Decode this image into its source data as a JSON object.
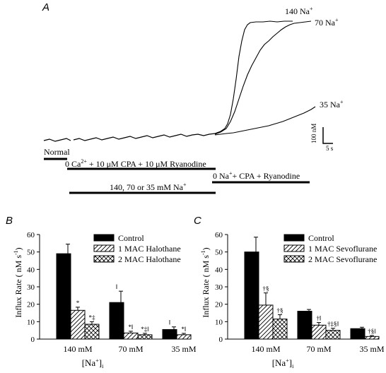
{
  "chart_data": [
    {
      "panel": "A",
      "type": "line",
      "trace_labels": [
        "140 Na",
        "70 Na",
        "35 Na"
      ],
      "superscript": "+",
      "scale_bar": {
        "y": "100 nM",
        "x": "5 s"
      },
      "protocol": {
        "normal": "Normal",
        "zero_ca": "0 Ca",
        "zero_ca_sup": "2+",
        "zero_ca_rest": " + 10 μM CPA + 10 μM Ryanodine",
        "zero_na": "0 Na",
        "zero_na_sup": "+",
        "zero_na_rest": "+  CPA + Ryanodine",
        "na_conc": "140, 70 or 35 mM Na",
        "na_conc_sup": "+"
      }
    },
    {
      "panel": "B",
      "type": "bar",
      "categories": [
        "140 mM",
        "70 mM",
        "35 mM"
      ],
      "ylim": [
        0,
        60
      ],
      "yticks": [
        0,
        10,
        20,
        30,
        40,
        50,
        60
      ],
      "ylabel": "Influx Rate ( nM s",
      "ylabel_sup": "-1",
      "ylabel_end": ")",
      "xlabel": "[Na",
      "xlabel_sup": "+",
      "xlabel_end": "]",
      "xlabel_sub": "i",
      "series": [
        {
          "name": "Control",
          "fill": "solid",
          "values": [
            49,
            21,
            5.5
          ],
          "errors": [
            5.5,
            6.5,
            1.5
          ]
        },
        {
          "name": "1 MAC Halothane",
          "fill": "hatch",
          "values": [
            16.5,
            3.5,
            2.5
          ],
          "errors": [
            1.8,
            1.0,
            0.8
          ]
        },
        {
          "name": "2 MAC Halothane",
          "fill": "cross",
          "values": [
            8.5,
            2.5,
            0
          ],
          "errors": [
            1.5,
            0.8,
            0
          ]
        }
      ],
      "annotations": [
        {
          "text": "*",
          "category": 0,
          "series": 1
        },
        {
          "text": "*‡",
          "category": 0,
          "series": 2
        },
        {
          "text": "‖",
          "category": 1,
          "series": 0
        },
        {
          "text": "*‖",
          "category": 1,
          "series": 1
        },
        {
          "text": "*‡‖",
          "category": 1,
          "series": 2
        },
        {
          "text": "‖",
          "category": 2,
          "series": 0
        },
        {
          "text": "*‖",
          "category": 2,
          "series": 1
        }
      ]
    },
    {
      "panel": "C",
      "type": "bar",
      "categories": [
        "140 mM",
        "70 mM",
        "35 mM"
      ],
      "ylim": [
        0,
        60
      ],
      "yticks": [
        0,
        10,
        20,
        30,
        40,
        50,
        60
      ],
      "ylabel": "Influx Rate ( nM s",
      "ylabel_sup": "-1",
      "ylabel_end": ")",
      "xlabel": "[Na",
      "xlabel_sup": "+",
      "xlabel_end": "]",
      "xlabel_sub": "i",
      "series": [
        {
          "name": "Control",
          "fill": "solid",
          "values": [
            50,
            16,
            6
          ],
          "errors": [
            8.5,
            1.0,
            0.8
          ]
        },
        {
          "name": "1 MAC Sevoflurane",
          "fill": "hatch",
          "values": [
            19.5,
            8,
            1.5
          ],
          "errors": [
            7.0,
            1.5,
            0.5
          ]
        },
        {
          "name": "2 MAC Sevoflurane",
          "fill": "cross",
          "values": [
            11.5,
            5,
            0
          ],
          "errors": [
            2.5,
            1.2,
            0
          ]
        }
      ],
      "annotations": [
        {
          "text": "†§",
          "category": 0,
          "series": 1
        },
        {
          "text": "†§",
          "category": 0,
          "series": 2
        },
        {
          "text": "†‖",
          "category": 1,
          "series": 1
        },
        {
          "text": "†‡§‖",
          "category": 1,
          "series": 2
        },
        {
          "text": "†§‖",
          "category": 2,
          "series": 1
        }
      ]
    }
  ]
}
